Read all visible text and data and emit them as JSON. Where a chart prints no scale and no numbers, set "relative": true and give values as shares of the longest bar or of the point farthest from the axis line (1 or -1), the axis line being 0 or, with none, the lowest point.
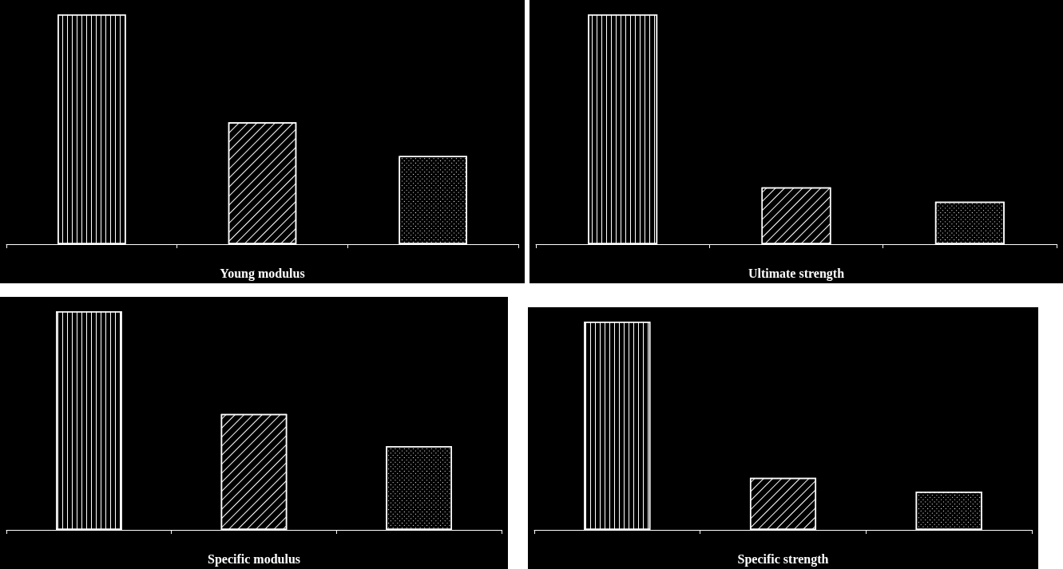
{
  "chart_data": [
    {
      "type": "bar",
      "relative": true,
      "categories": [
        null,
        null,
        null
      ],
      "values": [
        1,
        0.53,
        0.384
      ],
      "colors": [
        "#ffffff",
        "#ffffff",
        "#ffffff"
      ],
      "xlabel": "Young modulus"
    },
    {
      "type": "bar",
      "relative": true,
      "categories": [
        null,
        null,
        null
      ],
      "values": [
        1,
        0.247,
        0.185
      ],
      "colors": [
        "#ffffff",
        "#ffffff",
        "#ffffff"
      ],
      "xlabel": "Ultimate strength"
    },
    {
      "type": "bar",
      "relative": true,
      "categories": [
        null,
        null,
        null
      ],
      "values": [
        1,
        0.53,
        0.383
      ],
      "colors": [
        "#ffffff",
        "#ffffff",
        "#ffffff"
      ],
      "xlabel": "Specific modulus"
    },
    {
      "type": "bar",
      "relative": true,
      "categories": [
        null,
        null,
        null
      ],
      "values": [
        1,
        0.25,
        0.184
      ],
      "colors": [
        "#ffffff",
        "#ffffff",
        "#ffffff"
      ],
      "xlabel": "Specific strength"
    }
  ]
}
